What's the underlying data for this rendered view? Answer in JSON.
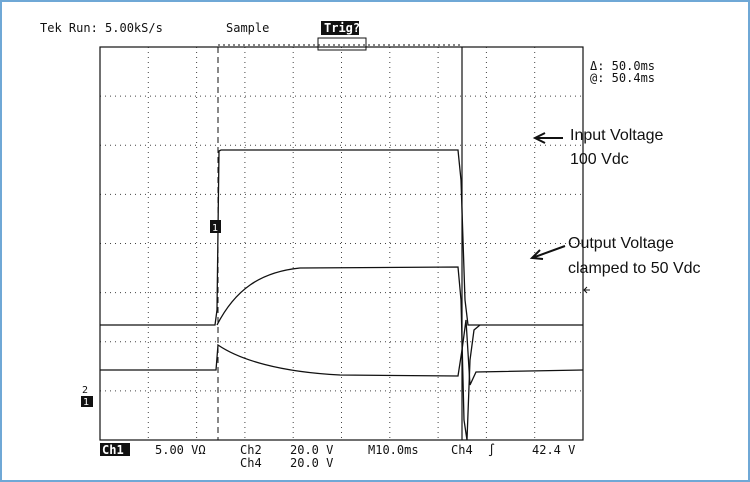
{
  "header": {
    "status": "Tek Run: 5.00kS/s",
    "mode": "Sample",
    "trigger": "Trig?"
  },
  "cursor": {
    "delta": "Δ: 50.0ms",
    "at": "@: 50.4ms"
  },
  "annotations": [
    {
      "lines": [
        "Input Voltage",
        "100 Vdc"
      ]
    },
    {
      "lines": [
        "Output Voltage",
        "clamped to 50 Vdc"
      ]
    }
  ],
  "markers": {
    "trigger_channel": "1",
    "left_top": "2",
    "left_bottom": "1"
  },
  "footer": {
    "ch1": "Ch1",
    "ch1_scale": "5.00 VΩ",
    "ch2": "Ch2",
    "ch2_scale": "20.0 V",
    "ch4": "Ch4",
    "ch4_scale": "20.0 V",
    "timebase": "M10.0ms",
    "trig_source": "Ch4",
    "trig_slope": "∫",
    "trig_level": "42.4 V"
  }
}
